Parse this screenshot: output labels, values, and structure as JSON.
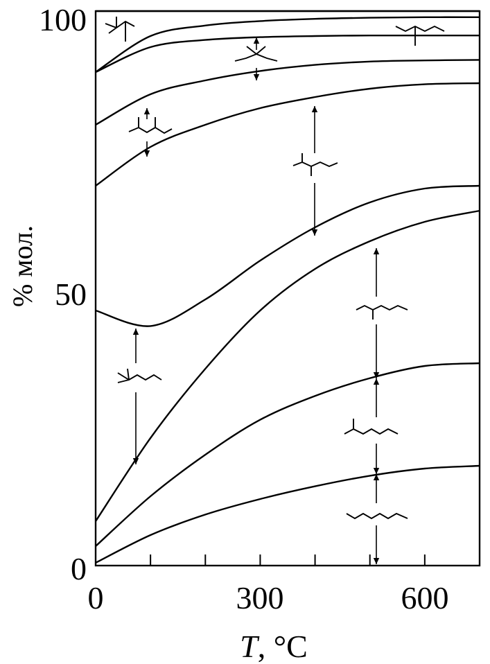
{
  "chart_data": {
    "type": "area",
    "xlabel_italic": "T",
    "xlabel_rest": ", °C",
    "ylabel": "% мол.",
    "xlim": [
      0,
      700
    ],
    "ylim": [
      0,
      100
    ],
    "x_ticks": [
      0,
      300,
      600
    ],
    "x_minor_ticks": [
      100,
      200,
      400,
      500,
      700
    ],
    "y_ticks": [
      0,
      50,
      100
    ],
    "x": [
      0,
      100,
      200,
      300,
      400,
      500,
      600,
      700
    ],
    "series": [
      {
        "values": [
          0.5,
          5.5,
          9.2,
          12.0,
          14.3,
          16.2,
          17.5,
          18.0
        ]
      },
      {
        "values": [
          3.5,
          12.5,
          20.0,
          26.3,
          30.6,
          33.8,
          36.0,
          36.5
        ]
      },
      {
        "values": [
          8.0,
          23.0,
          35.5,
          46.0,
          53.5,
          58.5,
          62.0,
          64.0
        ]
      },
      {
        "values": [
          46.0,
          43.2,
          48.0,
          55.0,
          61.0,
          65.5,
          68.0,
          68.5
        ]
      },
      {
        "values": [
          68.5,
          75.5,
          79.5,
          82.5,
          84.5,
          86.0,
          86.8,
          87.0
        ]
      },
      {
        "values": [
          79.5,
          85.0,
          87.5,
          89.2,
          90.3,
          90.9,
          91.1,
          91.2
        ]
      },
      {
        "values": [
          89.0,
          93.5,
          94.8,
          95.3,
          95.5,
          95.6,
          95.6,
          95.6
        ]
      },
      {
        "values": [
          89.0,
          95.5,
          97.4,
          98.2,
          98.6,
          98.8,
          98.9,
          98.9
        ]
      },
      {
        "values": [
          100,
          100,
          100,
          100,
          100,
          100,
          100,
          100
        ]
      }
    ],
    "components": [
      {
        "name": "n-heptane-structure"
      },
      {
        "name": "2-methylhexane-structure"
      },
      {
        "name": "3-methylhexane-structure"
      },
      {
        "name": "2,2-dimethylpentane-structure"
      },
      {
        "name": "2,4-dimethylpentane-structure"
      },
      {
        "name": "2,2,3-trimethylbutane-structure"
      },
      {
        "name": "3,3-dimethylpentane-structure"
      },
      {
        "name": "2,3-dimethylpentane-structure"
      },
      {
        "name": "3-ethylpentane-structure"
      }
    ],
    "grid": false
  }
}
